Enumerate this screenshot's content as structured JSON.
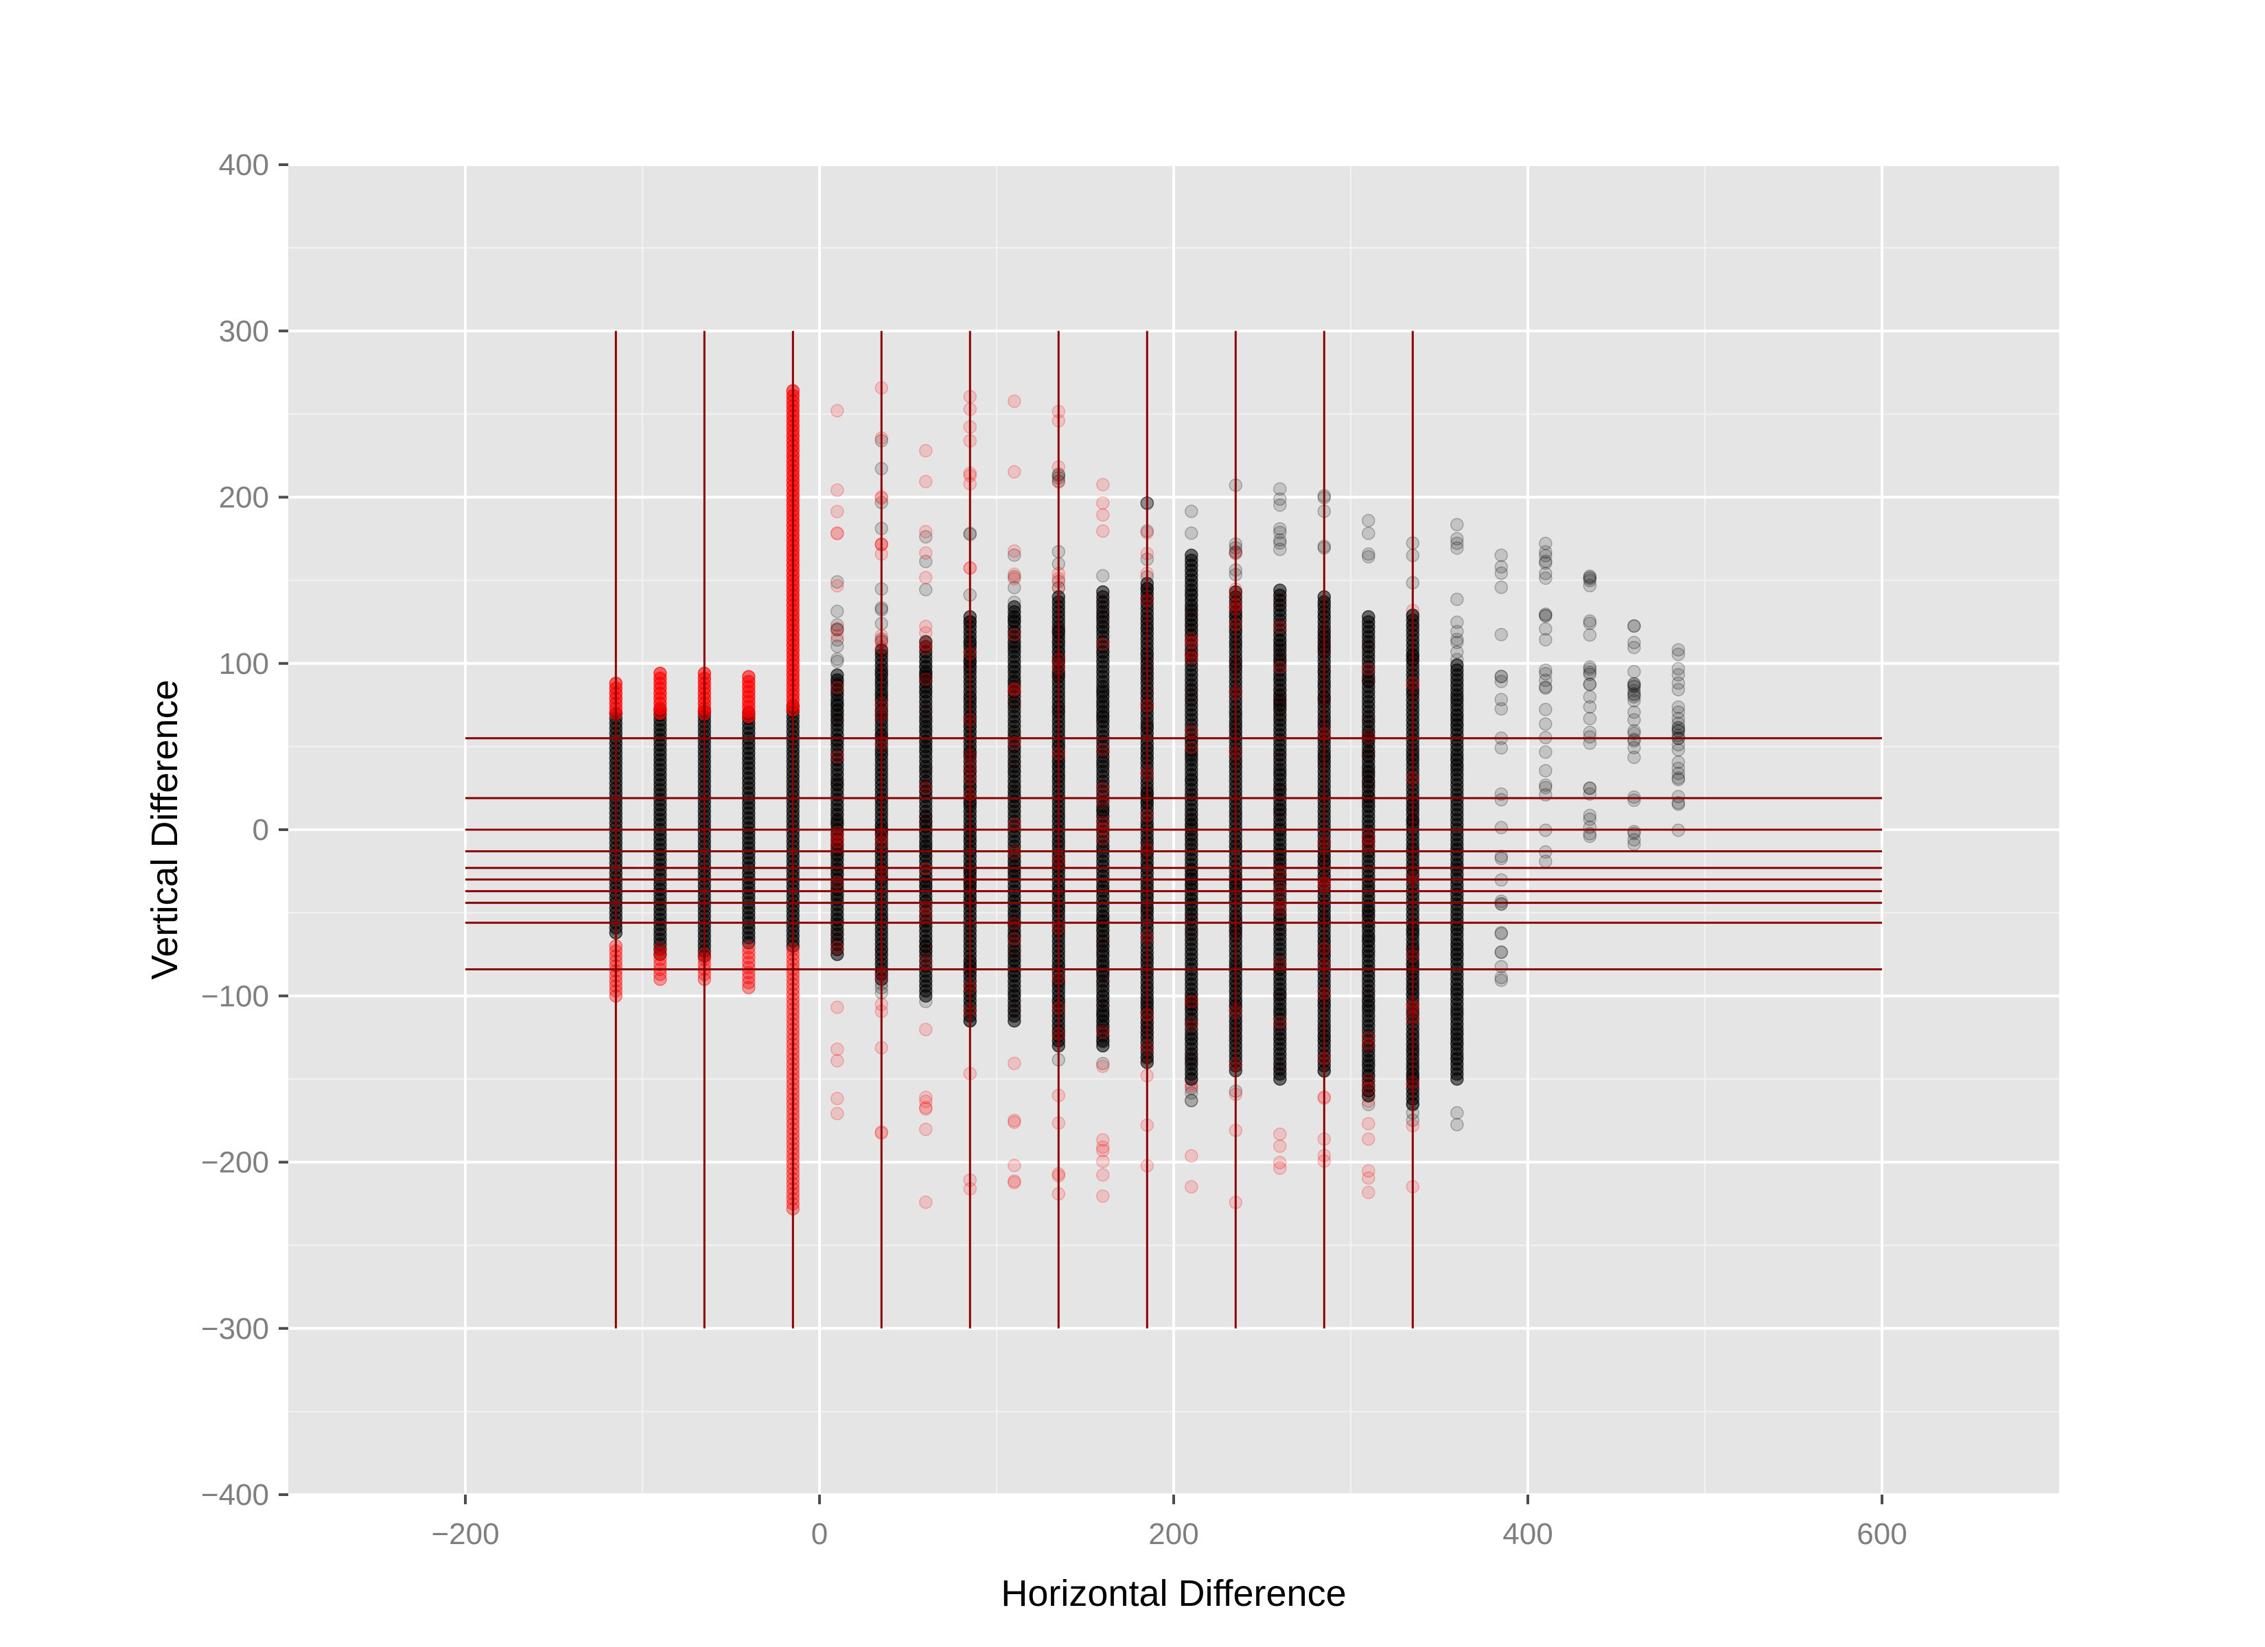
{
  "chart_data": {
    "type": "scatter",
    "title": "",
    "xlabel": "Horizontal Difference",
    "ylabel": "Vertical Difference",
    "xlim": [
      -300,
      700
    ],
    "ylim": [
      -400,
      400
    ],
    "x_ticks": [
      -200,
      0,
      200,
      400,
      600
    ],
    "y_ticks": [
      -400,
      -300,
      -200,
      -100,
      0,
      100,
      200,
      300,
      400
    ],
    "x_tick_labels": [
      "−200",
      "0",
      "200",
      "400",
      "600"
    ],
    "y_tick_labels": [
      "−400",
      "−300",
      "−200",
      "−100",
      "0",
      "100",
      "200",
      "300",
      "400"
    ],
    "grid": true,
    "legend": "none",
    "colors": {
      "panel_background": "#e5e5e5",
      "grid_major": "#ffffff",
      "grid_minor": "#f2f2f2",
      "point_black": "#000000",
      "point_red": "#ff0000",
      "reference_lines": "#8b0000",
      "tick_text": "#7f7f7f"
    },
    "reference_lines": {
      "vertical_x": [
        -115,
        -65,
        -15,
        35,
        85,
        135,
        185,
        235,
        285,
        335
      ],
      "vertical_y_range": [
        -300,
        300
      ],
      "horizontal_y": [
        55,
        19,
        0,
        -13,
        -23,
        -30,
        -37,
        -44,
        -56,
        -84
      ],
      "horizontal_x_range": [
        -200,
        600
      ]
    },
    "columns": [
      {
        "x": -115,
        "black": [
          -62,
          72
        ],
        "red_main": [
          70,
          88
        ],
        "red_low": [
          -100,
          -70
        ]
      },
      {
        "x": -90,
        "black": [
          -75,
          72
        ],
        "red_main": [
          70,
          95
        ],
        "red_low": [
          -90,
          -72
        ]
      },
      {
        "x": -65,
        "black": [
          -76,
          72
        ],
        "red_main": [
          70,
          95
        ],
        "red_low": [
          -90,
          -74
        ]
      },
      {
        "x": -40,
        "black": [
          -68,
          70
        ],
        "red_main": [
          68,
          93
        ],
        "red_low": [
          -95,
          -70
        ]
      },
      {
        "x": -15,
        "black": [
          -70,
          75
        ],
        "red_main": [
          72,
          265
        ],
        "red_low": [
          -228,
          -72
        ]
      },
      {
        "x": 10,
        "black": [
          -75,
          95
        ],
        "red_sparse": [
          -215,
          265
        ],
        "gray_sparse": [
          -80,
          150
        ]
      },
      {
        "x": 35,
        "black": [
          -90,
          110
        ],
        "red_sparse": [
          -225,
          268
        ],
        "gray_sparse": [
          -100,
          250
        ]
      },
      {
        "x": 60,
        "black": [
          -100,
          115
        ],
        "red_sparse": [
          -228,
          265
        ],
        "gray_sparse": [
          -105,
          185
        ]
      },
      {
        "x": 85,
        "black": [
          -115,
          128
        ],
        "red_sparse": [
          -232,
          265
        ],
        "gray_sparse": [
          -125,
          200
        ]
      },
      {
        "x": 110,
        "black": [
          -115,
          135
        ],
        "red_sparse": [
          -233,
          262
        ],
        "gray_sparse": [
          -125,
          180
        ]
      },
      {
        "x": 135,
        "black": [
          -130,
          140
        ],
        "red_sparse": [
          -235,
          255
        ],
        "gray_sparse": [
          -140,
          220
        ]
      },
      {
        "x": 160,
        "black": [
          -130,
          145
        ],
        "red_sparse": [
          -228,
          225
        ],
        "gray_sparse": [
          -145,
          180
        ]
      },
      {
        "x": 185,
        "black": [
          -140,
          150
        ],
        "red_sparse": [
          -205,
          195
        ],
        "gray_sparse": [
          -155,
          210
        ]
      },
      {
        "x": 210,
        "black": [
          -150,
          165
        ],
        "red_sparse": [
          -225,
          165
        ],
        "gray_sparse": [
          -165,
          200
        ]
      },
      {
        "x": 235,
        "black": [
          -145,
          145
        ],
        "red_sparse": [
          -228,
          170
        ],
        "gray_sparse": [
          -165,
          208
        ]
      },
      {
        "x": 260,
        "black": [
          -150,
          145
        ],
        "red_sparse": [
          -225,
          165
        ],
        "gray_sparse": [
          -160,
          212
        ]
      },
      {
        "x": 285,
        "black": [
          -145,
          140
        ],
        "red_sparse": [
          -200,
          150
        ],
        "gray_sparse": [
          -155,
          212
        ]
      },
      {
        "x": 310,
        "black": [
          -160,
          130
        ],
        "red_sparse": [
          -228,
          150
        ],
        "gray_sparse": [
          -170,
          210
        ]
      },
      {
        "x": 335,
        "black": [
          -165,
          130
        ],
        "red_sparse": [
          -232,
          140
        ],
        "gray_sparse": [
          -175,
          205
        ]
      },
      {
        "x": 360,
        "black": [
          -150,
          100
        ],
        "gray_sparse": [
          -185,
          200
        ]
      },
      {
        "x": 385,
        "gray_sparse": [
          -95,
          188
        ]
      },
      {
        "x": 410,
        "gray_sparse": [
          -30,
          173
        ]
      },
      {
        "x": 435,
        "gray_sparse": [
          -10,
          157
        ]
      },
      {
        "x": 460,
        "gray_sparse": [
          -10,
          135
        ]
      },
      {
        "x": 485,
        "gray_sparse": [
          -10,
          115
        ]
      }
    ]
  }
}
